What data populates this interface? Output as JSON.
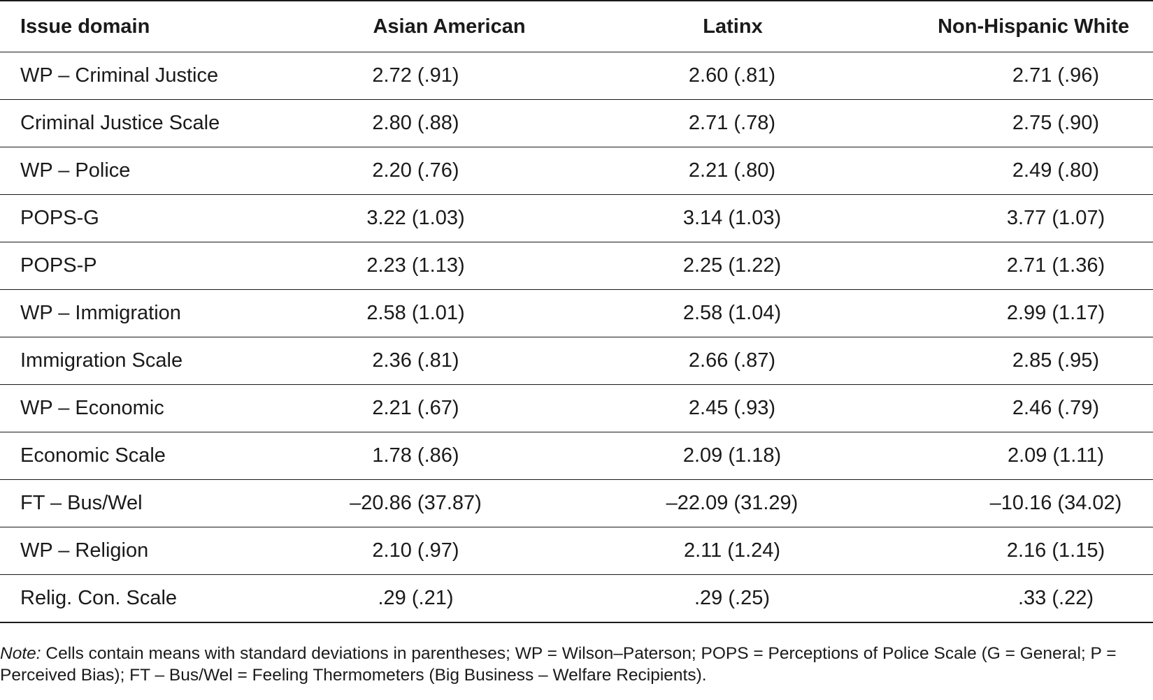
{
  "table": {
    "headers": [
      "Issue domain",
      "Asian American",
      "Latinx",
      "Non-Hispanic White"
    ],
    "rows": [
      [
        "WP – Criminal Justice",
        "2.72 (.91)",
        "2.60 (.81)",
        "2.71 (.96)"
      ],
      [
        "Criminal Justice Scale",
        "2.80 (.88)",
        "2.71 (.78)",
        "2.75 (.90)"
      ],
      [
        "WP – Police",
        "2.20 (.76)",
        "2.21 (.80)",
        "2.49 (.80)"
      ],
      [
        "POPS-G",
        "3.22 (1.03)",
        "3.14 (1.03)",
        "3.77 (1.07)"
      ],
      [
        "POPS-P",
        "2.23 (1.13)",
        "2.25 (1.22)",
        "2.71 (1.36)"
      ],
      [
        "WP – Immigration",
        "2.58 (1.01)",
        "2.58 (1.04)",
        "2.99 (1.17)"
      ],
      [
        "Immigration Scale",
        "2.36 (.81)",
        "2.66 (.87)",
        "2.85 (.95)"
      ],
      [
        "WP – Economic",
        "2.21 (.67)",
        "2.45 (.93)",
        "2.46 (.79)"
      ],
      [
        "Economic Scale",
        "1.78 (.86)",
        "2.09 (1.18)",
        "2.09 (1.11)"
      ],
      [
        "FT – Bus/Wel",
        "–20.86 (37.87)",
        "–22.09 (31.29)",
        "–10.16 (34.02)"
      ],
      [
        "WP – Religion",
        "2.10 (.97)",
        "2.11 (1.24)",
        "2.16 (1.15)"
      ],
      [
        "Relig. Con. Scale",
        ".29 (.21)",
        ".29 (.25)",
        ".33 (.22)"
      ]
    ]
  },
  "note": {
    "label": "Note:",
    "text": " Cells contain means with standard deviations in parentheses; WP = Wilson–Paterson; POPS = Perceptions of Police Scale (G = General; P = Perceived Bias); FT – Bus/Wel = Feeling Thermometers (Big Business – Welfare Recipients)."
  }
}
